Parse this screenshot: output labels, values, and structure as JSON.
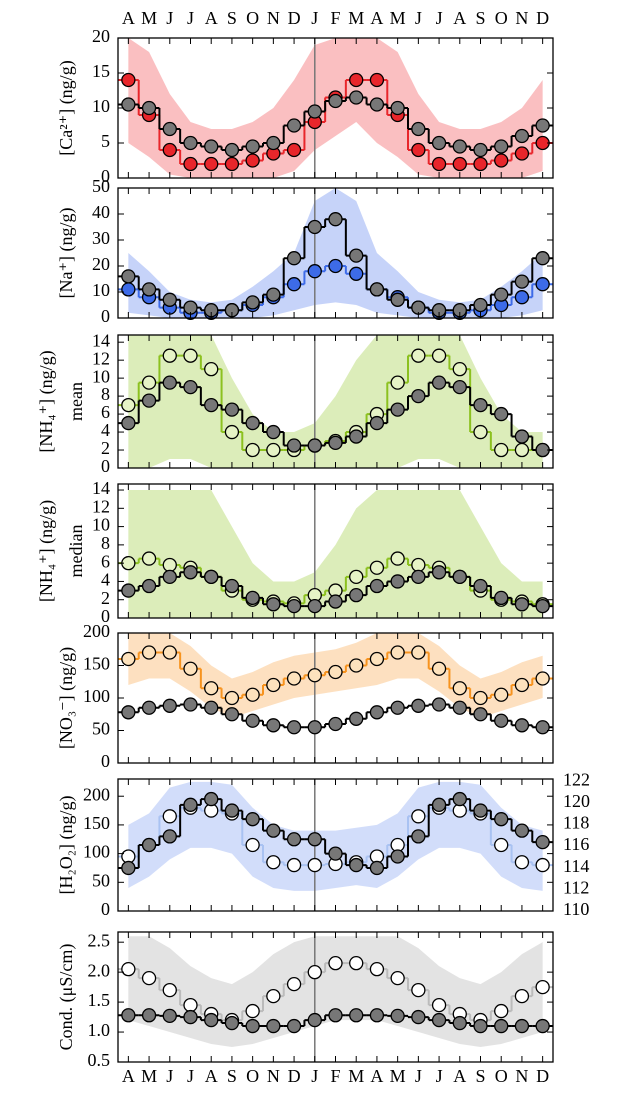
{
  "chart_data": [
    {
      "type": "step",
      "ylabel": "[Ca²⁺] (ng/g)",
      "xlabels_position": "top",
      "categories": [
        "A",
        "M",
        "J",
        "J",
        "A",
        "S",
        "O",
        "N",
        "D",
        "J",
        "F",
        "M",
        "A",
        "M",
        "J",
        "J",
        "A",
        "S",
        "O",
        "N",
        "D"
      ],
      "ylim": [
        0,
        20
      ],
      "yticks": [
        0,
        5,
        10,
        15,
        20
      ],
      "band": {
        "color": "#f2484c",
        "low": [
          5,
          3,
          0.5,
          0,
          0,
          0,
          0,
          0,
          1,
          4,
          6,
          8,
          5,
          3,
          0.5,
          0,
          0,
          0,
          0,
          0,
          1
        ],
        "high": [
          20,
          18,
          12,
          8,
          7,
          7,
          8,
          10,
          14,
          19,
          20,
          20,
          20,
          18,
          12,
          8,
          7,
          7,
          8,
          10,
          14
        ]
      },
      "series": [
        {
          "color": "#e8262b",
          "marker_fill": "#e8262b",
          "values": [
            14,
            9,
            4,
            2,
            2,
            2,
            2.5,
            3.5,
            4,
            8,
            11.5,
            14,
            14,
            9,
            4,
            2,
            2,
            2,
            2.5,
            3.5,
            5
          ]
        },
        {
          "color": "#000000",
          "marker_fill": "#777777",
          "values": [
            10.5,
            10,
            7,
            5,
            4.5,
            4,
            4.5,
            5,
            7.5,
            9.5,
            11,
            11.5,
            10.5,
            10,
            7,
            5,
            4.5,
            4,
            4.5,
            6,
            7.5
          ]
        }
      ]
    },
    {
      "type": "step",
      "ylabel": "[Na⁺] (ng/g)",
      "ylim": [
        0,
        50
      ],
      "yticks": [
        0,
        10,
        20,
        30,
        40,
        50
      ],
      "band": {
        "color": "#5b82ee",
        "low": [
          2,
          1,
          0,
          0,
          0,
          0,
          0,
          1,
          3,
          5,
          6,
          5,
          2,
          1,
          0,
          0,
          0,
          0,
          0,
          1,
          3
        ],
        "high": [
          25,
          18,
          10,
          7,
          6,
          7,
          12,
          18,
          25,
          45,
          50,
          45,
          25,
          18,
          10,
          7,
          6,
          7,
          12,
          18,
          25
        ]
      },
      "series": [
        {
          "color": "#3d6be8",
          "marker_fill": "#3d6be8",
          "values": [
            11,
            8,
            4,
            2,
            2,
            3,
            5,
            8,
            13,
            18,
            20,
            17,
            11,
            8,
            4,
            2,
            2,
            3,
            5,
            8,
            13
          ]
        },
        {
          "color": "#000000",
          "marker_fill": "#777777",
          "values": [
            16,
            11,
            7,
            4,
            3,
            3,
            6,
            9,
            23,
            35,
            38,
            24,
            11,
            7,
            4,
            3,
            3,
            5,
            9,
            14,
            23
          ]
        }
      ]
    },
    {
      "type": "step",
      "ylabel": "[NH₄⁺] (ng/g)",
      "ylabel2": "mean",
      "ylim": [
        0,
        14.8
      ],
      "yticks": [
        0,
        2,
        4,
        6,
        8,
        10,
        12,
        14
      ],
      "band": {
        "color": "#9ccc3a",
        "low": [
          0,
          0,
          1,
          1,
          0,
          0,
          0,
          0,
          0,
          0,
          0,
          0,
          0,
          0,
          1,
          1,
          0,
          0,
          0,
          0,
          0
        ],
        "high": [
          14.8,
          14.8,
          14.8,
          14.8,
          14.8,
          10,
          6,
          4,
          4,
          5,
          8,
          12,
          14.8,
          14.8,
          14.8,
          14.8,
          14.8,
          10,
          6,
          4,
          4
        ]
      },
      "series": [
        {
          "color": "#8cc11f",
          "marker_fill": "#e6f3c6",
          "values": [
            7,
            9.5,
            12.5,
            12.5,
            11,
            4,
            2,
            2,
            2,
            2.5,
            3,
            4,
            6,
            9.5,
            12.5,
            12.5,
            11,
            4,
            2,
            2,
            2
          ]
        },
        {
          "color": "#000000",
          "marker_fill": "#777777",
          "values": [
            5,
            7.5,
            9.5,
            9,
            7,
            6.5,
            5,
            4,
            2.5,
            2.5,
            2.8,
            3.5,
            5,
            6.5,
            8,
            9.5,
            9,
            7,
            6,
            3.5,
            2
          ]
        }
      ]
    },
    {
      "type": "step",
      "ylabel": "[NH₄⁺] (ng/g)",
      "ylabel2": "median",
      "ylim": [
        0,
        14.66
      ],
      "yticks": [
        0,
        2,
        4,
        6,
        8,
        10,
        12,
        14
      ],
      "band": {
        "color": "#9ccc3a",
        "low": [
          0,
          0,
          0,
          0,
          0,
          0,
          0,
          0,
          0,
          0,
          0,
          0,
          0,
          0,
          0,
          0,
          0,
          0,
          0,
          0,
          0
        ],
        "high": [
          14,
          14,
          14,
          14,
          14,
          10,
          6,
          4,
          4,
          5,
          8,
          12,
          14,
          14,
          14,
          14,
          14,
          10,
          6,
          4,
          4
        ]
      },
      "series": [
        {
          "color": "#8cc11f",
          "marker_fill": "#e6f3c6",
          "values": [
            6,
            6.5,
            5.8,
            5.5,
            4.5,
            3,
            2,
            1.8,
            1.6,
            2.5,
            3,
            4.5,
            5.5,
            6.5,
            5.8,
            5.5,
            4.5,
            3,
            2,
            1.8,
            1.5
          ]
        },
        {
          "color": "#000000",
          "marker_fill": "#777777",
          "values": [
            3,
            3.5,
            4.5,
            5,
            4.5,
            3.5,
            2.2,
            1.5,
            1.3,
            1.3,
            1.8,
            2.5,
            3.5,
            4,
            4.5,
            5,
            4.5,
            3.5,
            2.2,
            1.5,
            1.3
          ]
        }
      ]
    },
    {
      "type": "step",
      "ylabel": "[NO₃⁻] (ng/g)",
      "ylim": [
        0,
        200
      ],
      "yticks": [
        0,
        50,
        100,
        150,
        200
      ],
      "band": {
        "color": "#f9a64a",
        "low": [
          120,
          130,
          130,
          110,
          85,
          70,
          80,
          90,
          100,
          105,
          110,
          115,
          120,
          130,
          130,
          110,
          85,
          70,
          80,
          90,
          100
        ],
        "high": [
          200,
          200,
          200,
          180,
          150,
          130,
          140,
          155,
          165,
          170,
          175,
          185,
          200,
          200,
          200,
          180,
          150,
          130,
          140,
          155,
          165
        ]
      },
      "series": [
        {
          "color": "#f7931e",
          "marker_fill": "#fde2bd",
          "values": [
            160,
            170,
            170,
            145,
            115,
            100,
            105,
            120,
            130,
            135,
            140,
            150,
            160,
            170,
            170,
            145,
            115,
            100,
            105,
            120,
            130
          ]
        },
        {
          "color": "#000000",
          "marker_fill": "#777777",
          "values": [
            78,
            85,
            88,
            90,
            85,
            75,
            65,
            58,
            55,
            55,
            60,
            68,
            78,
            85,
            88,
            90,
            85,
            75,
            65,
            58,
            55
          ]
        }
      ]
    },
    {
      "type": "step",
      "ylabel": "[H₂O₂] (ng/g)",
      "ylim": [
        0,
        230
      ],
      "yticks": [
        0,
        50,
        100,
        150,
        200
      ],
      "y2lim": [
        110,
        122.2
      ],
      "y2ticks": [
        110,
        112,
        114,
        116,
        118,
        120,
        122
      ],
      "band": {
        "color": "#7d9ff0",
        "low": [
          40,
          60,
          90,
          110,
          110,
          100,
          60,
          40,
          35,
          35,
          40,
          45,
          40,
          60,
          90,
          110,
          110,
          100,
          60,
          40,
          35
        ],
        "high": [
          150,
          170,
          215,
          225,
          225,
          220,
          180,
          150,
          140,
          140,
          140,
          145,
          150,
          170,
          215,
          225,
          225,
          220,
          180,
          150,
          140
        ]
      },
      "series": [
        {
          "color": "#a9c2f2",
          "marker_fill": "#ffffff",
          "values": [
            95,
            115,
            165,
            180,
            175,
            170,
            115,
            85,
            80,
            80,
            82,
            85,
            95,
            115,
            165,
            180,
            175,
            170,
            115,
            85,
            80
          ]
        },
        {
          "color": "#000000",
          "marker_fill": "#777777",
          "values": [
            75,
            115,
            130,
            185,
            195,
            175,
            160,
            140,
            125,
            125,
            100,
            80,
            75,
            95,
            130,
            185,
            195,
            175,
            160,
            140,
            120
          ]
        }
      ]
    },
    {
      "type": "step",
      "ylabel": "Cond. (μS/cm)",
      "xlabels_position": "bottom",
      "categories": [
        "A",
        "M",
        "J",
        "J",
        "A",
        "S",
        "O",
        "N",
        "D",
        "J",
        "F",
        "M",
        "A",
        "M",
        "J",
        "J",
        "A",
        "S",
        "O",
        "N",
        "D"
      ],
      "ylim": [
        0.5,
        2.67
      ],
      "yticks": [
        {
          "value": 0.5,
          "label": "0.5"
        },
        {
          "value": 1,
          "label": "1.0"
        },
        {
          "value": 1.5,
          "label": "1.5"
        },
        {
          "value": 2,
          "label": "2.0"
        },
        {
          "value": 2.5,
          "label": "2.5"
        }
      ],
      "band": {
        "color": "#b0b0b0",
        "low": [
          1.2,
          1.1,
          1.0,
          0.9,
          0.8,
          0.75,
          0.8,
          0.9,
          1.0,
          1.1,
          1.2,
          1.2,
          1.2,
          1.1,
          1.0,
          0.9,
          0.8,
          0.75,
          0.8,
          0.9,
          1.0
        ],
        "high": [
          2.6,
          2.6,
          2.4,
          2.1,
          1.9,
          1.8,
          2.0,
          2.3,
          2.5,
          2.6,
          2.6,
          2.6,
          2.6,
          2.6,
          2.4,
          2.1,
          1.9,
          1.8,
          2.0,
          2.3,
          2.5
        ]
      },
      "series": [
        {
          "color": "#bbbbbb",
          "marker_fill": "#ffffff",
          "values": [
            2.05,
            1.9,
            1.7,
            1.45,
            1.3,
            1.2,
            1.35,
            1.6,
            1.8,
            2.0,
            2.15,
            2.15,
            2.05,
            1.9,
            1.7,
            1.45,
            1.3,
            1.2,
            1.35,
            1.6,
            1.75
          ]
        },
        {
          "color": "#000000",
          "marker_fill": "#777777",
          "values": [
            1.28,
            1.28,
            1.27,
            1.25,
            1.2,
            1.15,
            1.1,
            1.1,
            1.1,
            1.2,
            1.28,
            1.28,
            1.28,
            1.27,
            1.25,
            1.2,
            1.15,
            1.1,
            1.1,
            1.1,
            1.1
          ]
        }
      ]
    }
  ]
}
